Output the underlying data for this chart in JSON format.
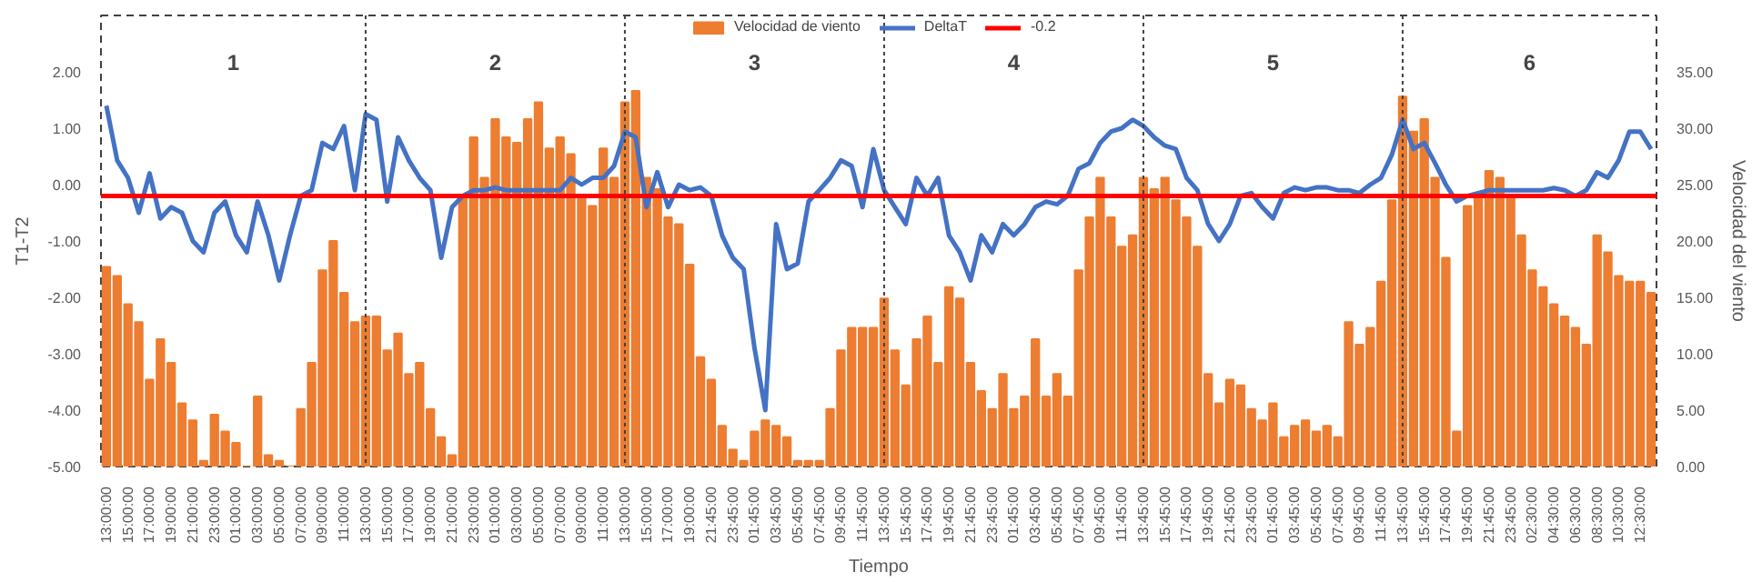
{
  "chart_data": {
    "type": "bar",
    "xlabel": "Tiempo",
    "ylabel": "T1-T2",
    "y2label": "Velocidad del viento",
    "legend": "top",
    "categories": [
      "13:00:00",
      null,
      "15:00:00",
      null,
      "17:00:00",
      null,
      "19:00:00",
      null,
      "21:00:00",
      null,
      "23:00:00",
      null,
      "01:00:00",
      null,
      "03:00:00",
      null,
      "05:00:00",
      null,
      "07:00:00",
      null,
      "09:00:00",
      null,
      "11:00:00",
      null,
      "13:00:00",
      null,
      "15:00:00",
      null,
      "17:00:00",
      null,
      "19:00:00",
      null,
      "21:00:00",
      null,
      "23:00:00",
      null,
      "01:00:00",
      null,
      "03:00:00",
      null,
      "05:00:00",
      null,
      "07:00:00",
      null,
      "09:00:00",
      null,
      "11:00:00",
      null,
      "13:00:00",
      null,
      "15:00:00",
      null,
      "17:00:00",
      null,
      "19:00:00",
      null,
      "21:45:00",
      null,
      "23:45:00",
      null,
      "01:45:00",
      null,
      "03:45:00",
      null,
      "05:45:00",
      null,
      "07:45:00",
      null,
      "09:45:00",
      null,
      "11:45:00",
      null,
      "13:45:00",
      null,
      "15:45:00",
      null,
      "17:45:00",
      null,
      "19:45:00",
      null,
      "21:45:00",
      null,
      "23:45:00",
      null,
      "01:45:00",
      null,
      "03:45:00",
      null,
      "05:45:00",
      null,
      "07:45:00",
      null,
      "09:45:00",
      null,
      "11:45:00",
      null,
      "13:45:00",
      null,
      "15:45:00",
      null,
      "17:45:00",
      null,
      "19:45:00",
      null,
      "21:45:00",
      null,
      "23:45:00",
      null,
      "01:45:00",
      null,
      "03:45:00",
      null,
      "05:45:00",
      null,
      "07:45:00",
      null,
      "09:45:00",
      null,
      "11:45:00",
      null,
      "13:45:00",
      null,
      "15:45:00",
      null,
      "17:45:00",
      null,
      "19:45:00",
      null,
      "21:45:00",
      null,
      "23:45:00",
      null,
      "02:30:00",
      null,
      "04:30:00",
      null,
      "06:30:00",
      null,
      "08:30:00",
      null,
      "10:30:00",
      null,
      "12:30:00",
      null
    ],
    "series": [
      {
        "name": "Velocidad de viento",
        "axis": "y2",
        "color": "#ed7d31",
        "values": [
          17.7,
          16.9,
          14.4,
          12.8,
          7.7,
          11.3,
          9.2,
          5.6,
          4.1,
          0.5,
          4.6,
          3.1,
          2.1,
          0,
          6.2,
          1.0,
          0.5,
          0,
          5.1,
          9.2,
          17.4,
          20,
          15.4,
          12.8,
          13.3,
          13.3,
          10.3,
          11.8,
          8.2,
          9.2,
          5.1,
          2.6,
          1.0,
          24.1,
          29.2,
          25.6,
          30.8,
          29.2,
          28.7,
          30.8,
          32.3,
          28.2,
          29.2,
          27.7,
          24.1,
          23.1,
          28.2,
          25.6,
          32.3,
          33.3,
          25.6,
          24.6,
          22.1,
          21.5,
          17.9,
          9.7,
          7.7,
          3.6,
          1.5,
          0.5,
          3.1,
          4.1,
          3.6,
          2.6,
          0.5,
          0.5,
          0.5,
          5.1,
          10.3,
          12.3,
          12.3,
          12.3,
          14.9,
          10.3,
          7.2,
          11.3,
          13.3,
          9.2,
          15.9,
          14.9,
          9.2,
          6.7,
          5.1,
          8.2,
          5.1,
          6.2,
          11.3,
          6.2,
          8.2,
          6.2,
          17.4,
          22.1,
          25.6,
          22.1,
          19.5,
          20.5,
          25.6,
          24.6,
          25.6,
          23.6,
          22.1,
          19.5,
          8.2,
          5.6,
          7.7,
          7.2,
          5.1,
          4.1,
          5.6,
          2.6,
          3.6,
          4.1,
          3.1,
          3.6,
          2.6,
          12.8,
          10.8,
          12.3,
          16.4,
          23.6,
          32.8,
          29.7,
          30.8,
          25.6,
          18.5,
          3.1,
          23.1,
          24.1,
          26.2,
          25.6,
          24.1,
          20.5,
          17.4,
          15.9,
          14.4,
          13.3,
          12.3,
          10.8,
          20.5,
          19.0,
          16.9,
          16.4,
          16.4,
          15.4
        ]
      },
      {
        "name": "DeltaT",
        "type": "line",
        "color": "#4472c4",
        "values": [
          1.4,
          0.43,
          0.12,
          -0.5,
          0.2,
          -0.6,
          -0.4,
          -0.5,
          -1.0,
          -1.2,
          -0.5,
          -0.3,
          -0.9,
          -1.2,
          -0.3,
          -0.9,
          -1.7,
          -0.9,
          -0.2,
          -0.1,
          0.74,
          0.63,
          1.04,
          -0.1,
          1.25,
          1.15,
          -0.3,
          0.84,
          0.43,
          0.12,
          -0.1,
          -1.3,
          -0.4,
          -0.2,
          -0.1,
          -0.1,
          -0.05,
          -0.1,
          -0.1,
          -0.1,
          -0.1,
          -0.1,
          -0.1,
          0.12,
          0,
          0.12,
          0.12,
          0.33,
          0.94,
          0.84,
          -0.4,
          0.22,
          -0.4,
          0,
          -0.1,
          -0.05,
          -0.2,
          -0.9,
          -1.3,
          -1.5,
          -2.9,
          -4.0,
          -0.7,
          -1.5,
          -1.4,
          -0.3,
          -0.1,
          0.12,
          0.43,
          0.33,
          -0.4,
          0.63,
          -0.1,
          -0.4,
          -0.7,
          0.12,
          -0.2,
          0.12,
          -0.9,
          -1.2,
          -1.7,
          -0.9,
          -1.2,
          -0.7,
          -0.9,
          -0.7,
          -0.4,
          -0.3,
          -0.35,
          -0.2,
          0.28,
          0.38,
          0.74,
          0.94,
          1.0,
          1.15,
          1.04,
          0.84,
          0.69,
          0.63,
          0.12,
          -0.1,
          -0.7,
          -1.0,
          -0.7,
          -0.2,
          -0.15,
          -0.4,
          -0.6,
          -0.15,
          -0.05,
          -0.1,
          -0.05,
          -0.05,
          -0.1,
          -0.1,
          -0.15,
          0,
          0.12,
          0.53,
          1.15,
          0.63,
          0.74,
          0.38,
          0,
          -0.3,
          -0.2,
          -0.15,
          -0.1,
          -0.1,
          -0.1,
          -0.1,
          -0.1,
          -0.1,
          -0.06,
          -0.1,
          -0.2,
          -0.1,
          0.22,
          0.12,
          0.43,
          0.94,
          0.94,
          0.63
        ]
      }
    ],
    "ylim": [
      -5,
      3
    ],
    "yticks": [
      {
        "value": -5,
        "label": "-5.00"
      },
      {
        "value": -4,
        "label": "-4.00"
      },
      {
        "value": -3,
        "label": "-3.00"
      },
      {
        "value": -2,
        "label": "-2.00"
      },
      {
        "value": -1,
        "label": "-1.00"
      },
      {
        "value": 0,
        "label": "0.00"
      },
      {
        "value": 1,
        "label": "1.00"
      },
      {
        "value": 2,
        "label": "2.00"
      }
    ],
    "y2lim": [
      0,
      40
    ],
    "y2ticks": [
      {
        "value": 0,
        "label": "0.00"
      },
      {
        "value": 5,
        "label": "5.00"
      },
      {
        "value": 10,
        "label": "10.00"
      },
      {
        "value": 15,
        "label": "15.00"
      },
      {
        "value": 20,
        "label": "20.00"
      },
      {
        "value": 25,
        "label": "25.00"
      },
      {
        "value": 30,
        "label": "30.00"
      },
      {
        "value": 35,
        "label": "35.00"
      }
    ],
    "ref_lines": [
      {
        "axis": "y",
        "value": -0.2,
        "label": "-0.2",
        "color": "#ff0000"
      }
    ],
    "annotations": [
      "1",
      "2",
      "3",
      "4",
      "5",
      "6"
    ]
  }
}
